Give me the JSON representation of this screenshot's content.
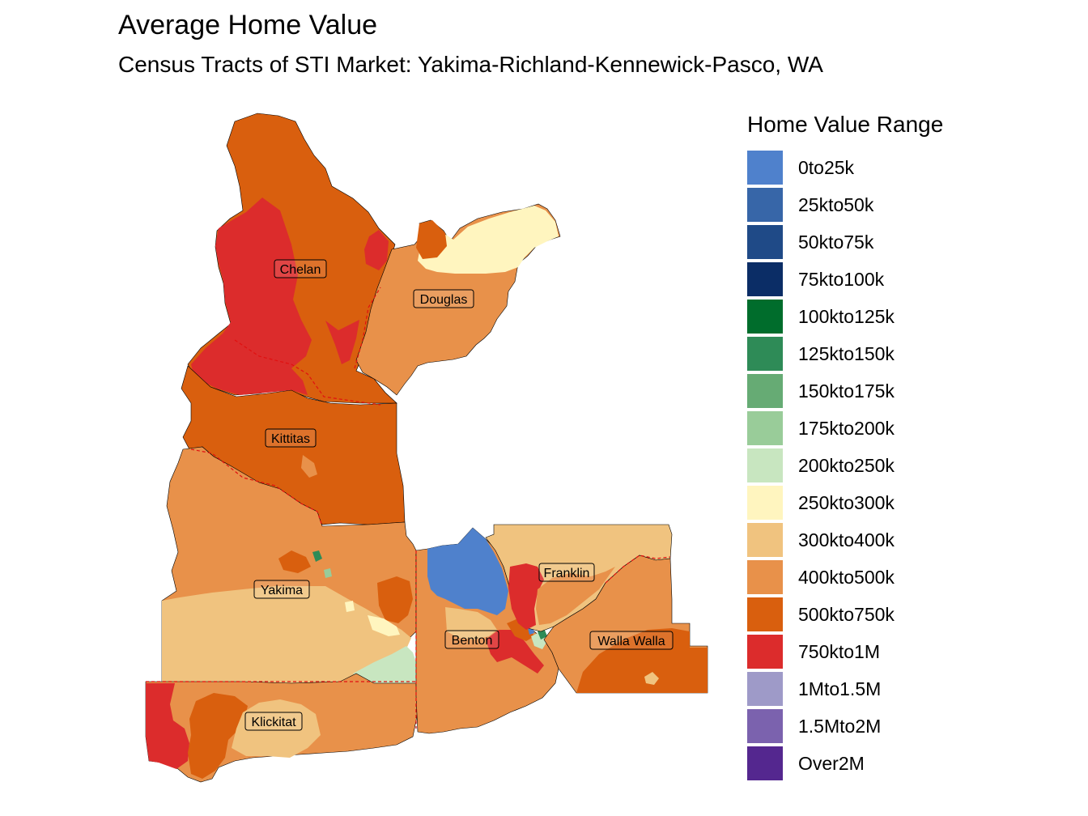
{
  "title": "Average Home Value",
  "subtitle": "Census Tracts of STI Market: Yakima-Richland-Kennewick-Pasco, WA",
  "legend": {
    "title": "Home Value Range",
    "items": [
      {
        "label": "0to25k",
        "color": "#4F81CC"
      },
      {
        "label": "25kto50k",
        "color": "#3766A8"
      },
      {
        "label": "50kto75k",
        "color": "#1F4A87"
      },
      {
        "label": "75kto100k",
        "color": "#0B2D66"
      },
      {
        "label": "100kto125k",
        "color": "#006D2C"
      },
      {
        "label": "125kto150k",
        "color": "#2E8B57"
      },
      {
        "label": "150kto175k",
        "color": "#66AB74"
      },
      {
        "label": "175kto200k",
        "color": "#99CC99"
      },
      {
        "label": "200kto250k",
        "color": "#C8E6C0"
      },
      {
        "label": "250kto300k",
        "color": "#FFF5BF"
      },
      {
        "label": "300kto400k",
        "color": "#F0C37F"
      },
      {
        "label": "400kto500k",
        "color": "#E8914A"
      },
      {
        "label": "500kto750k",
        "color": "#D95F0E"
      },
      {
        "label": "750kto1M",
        "color": "#DC2C2C"
      },
      {
        "label": "1Mto1.5M",
        "color": "#9E9AC8"
      },
      {
        "label": "1.5Mto2M",
        "color": "#7B62AE"
      },
      {
        "label": "Over2M",
        "color": "#54278F"
      }
    ]
  },
  "counties": {
    "chelan": "Chelan",
    "douglas": "Douglas",
    "kittitas": "Kittitas",
    "yakima": "Yakima",
    "franklin": "Franklin",
    "benton": "Benton",
    "walla_walla": "Walla Walla",
    "klickitat": "Klickitat"
  }
}
